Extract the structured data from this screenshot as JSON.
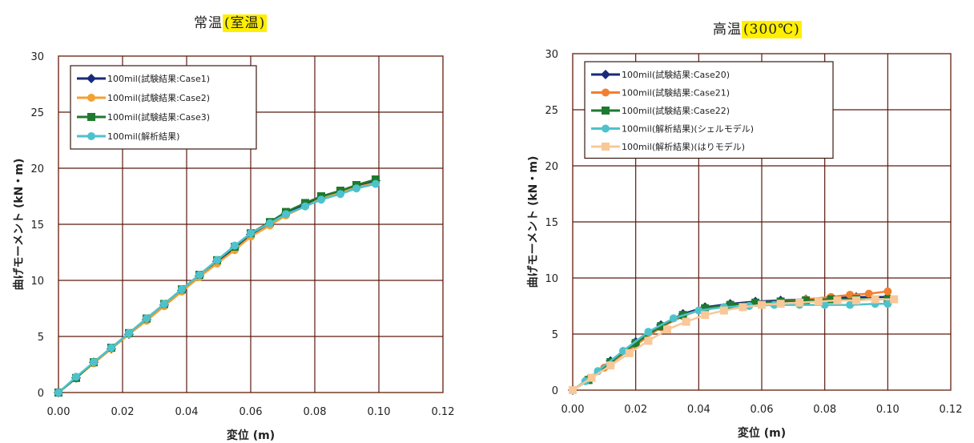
{
  "chart_data": [
    {
      "type": "line",
      "title": "常温",
      "title_highlight": "(室温)",
      "xlabel": "変位 (m)",
      "ylabel": "曲げモーメント (kN・m)",
      "xlim": [
        0,
        0.12
      ],
      "ylim": [
        0,
        30
      ],
      "xticks": [
        "0.00",
        "0.02",
        "0.04",
        "0.06",
        "0.08",
        "0.10",
        "0.12"
      ],
      "yticks": [
        "0",
        "5",
        "10",
        "15",
        "20",
        "25",
        "30"
      ],
      "grid": true,
      "legend_position": "top-left",
      "series": [
        {
          "name": "100mil(試験結果:Case1)",
          "color": "#1a2a7a",
          "marker": "diamond",
          "x": [
            0,
            0.0055,
            0.011,
            0.0165,
            0.022,
            0.0275,
            0.033,
            0.0385,
            0.044,
            0.0495,
            0.055,
            0.06,
            0.066,
            0.071,
            0.077,
            0.082,
            0.088,
            0.093,
            0.099
          ],
          "y": [
            0,
            1.3,
            2.7,
            3.9,
            5.2,
            6.5,
            7.8,
            9.1,
            10.4,
            11.7,
            12.9,
            14.1,
            15.1,
            16.0,
            16.8,
            17.4,
            17.9,
            18.4,
            18.9
          ]
        },
        {
          "name": "100mil(試験結果:Case2)",
          "color": "#f5a030",
          "marker": "circle",
          "x": [
            0,
            0.0055,
            0.011,
            0.0165,
            0.022,
            0.0275,
            0.033,
            0.0385,
            0.044,
            0.0495,
            0.055,
            0.06,
            0.066,
            0.071,
            0.077,
            0.082,
            0.088,
            0.093,
            0.099
          ],
          "y": [
            0,
            1.3,
            2.6,
            3.9,
            5.2,
            6.4,
            7.7,
            9.0,
            10.3,
            11.5,
            12.7,
            13.9,
            14.9,
            15.8,
            16.6,
            17.3,
            17.8,
            18.3,
            18.7
          ]
        },
        {
          "name": "100mil(試験結果:Case3)",
          "color": "#1e7a2e",
          "marker": "square",
          "x": [
            0,
            0.0055,
            0.011,
            0.0165,
            0.022,
            0.0275,
            0.033,
            0.0385,
            0.044,
            0.0495,
            0.055,
            0.06,
            0.066,
            0.071,
            0.077,
            0.082,
            0.088,
            0.093,
            0.099
          ],
          "y": [
            0,
            1.3,
            2.7,
            4.0,
            5.3,
            6.6,
            7.9,
            9.2,
            10.5,
            11.8,
            13.0,
            14.2,
            15.2,
            16.1,
            16.9,
            17.5,
            18.0,
            18.5,
            19.0
          ]
        },
        {
          "name": "100mil(解析結果)",
          "color": "#4ec2cc",
          "marker": "circle",
          "x": [
            0,
            0.0055,
            0.011,
            0.0165,
            0.022,
            0.0275,
            0.033,
            0.0385,
            0.044,
            0.0495,
            0.055,
            0.06,
            0.066,
            0.071,
            0.077,
            0.082,
            0.088,
            0.093,
            0.099
          ],
          "y": [
            0,
            1.4,
            2.7,
            4.0,
            5.3,
            6.6,
            7.9,
            9.2,
            10.5,
            11.8,
            13.1,
            14.2,
            15.1,
            15.9,
            16.6,
            17.2,
            17.7,
            18.2,
            18.6
          ]
        }
      ]
    },
    {
      "type": "line",
      "title": "高温",
      "title_highlight": "(300℃)",
      "xlabel": "変位 (m)",
      "ylabel": "曲げモーメント (kN・m)",
      "xlim": [
        0,
        0.12
      ],
      "ylim": [
        0,
        30
      ],
      "xticks": [
        "0.00",
        "0.02",
        "0.04",
        "0.06",
        "0.08",
        "0.10",
        "0.12"
      ],
      "yticks": [
        "0",
        "5",
        "10",
        "15",
        "20",
        "25",
        "30"
      ],
      "grid": true,
      "legend_position": "top-left",
      "series": [
        {
          "name": "100mil(試験結果:Case20)",
          "color": "#1a2a7a",
          "marker": "diamond",
          "x": [
            0,
            0.005,
            0.012,
            0.02,
            0.028,
            0.035,
            0.042,
            0.05,
            0.058,
            0.066,
            0.074,
            0.082,
            0.09,
            0.1
          ],
          "y": [
            0,
            1.0,
            2.6,
            4.3,
            5.8,
            6.8,
            7.4,
            7.7,
            7.9,
            8.0,
            8.1,
            8.2,
            8.3,
            8.3
          ]
        },
        {
          "name": "100mil(試験結果:Case21)",
          "color": "#f08030",
          "marker": "circle",
          "x": [
            0,
            0.005,
            0.01,
            0.02,
            0.028,
            0.035,
            0.042,
            0.05,
            0.058,
            0.066,
            0.074,
            0.082,
            0.088,
            0.094,
            0.1
          ],
          "y": [
            0,
            0.9,
            2.0,
            4.0,
            5.6,
            6.6,
            7.3,
            7.6,
            7.8,
            7.9,
            8.1,
            8.3,
            8.5,
            8.6,
            8.8
          ]
        },
        {
          "name": "100mil(試験結果:Case22)",
          "color": "#1e7a2e",
          "marker": "square",
          "x": [
            0,
            0.005,
            0.012,
            0.02,
            0.028,
            0.035,
            0.042,
            0.05,
            0.058,
            0.066,
            0.074,
            0.082,
            0.09,
            0.1
          ],
          "y": [
            0,
            0.9,
            2.5,
            4.2,
            5.7,
            6.7,
            7.3,
            7.6,
            7.8,
            7.9,
            8.0,
            8.1,
            8.1,
            8.1
          ]
        },
        {
          "name": "100mil(解析結果)(シェルモデル)",
          "color": "#4ec2cc",
          "marker": "circle",
          "x": [
            0,
            0.004,
            0.008,
            0.016,
            0.024,
            0.032,
            0.04,
            0.048,
            0.056,
            0.064,
            0.072,
            0.08,
            0.088,
            0.096,
            0.1
          ],
          "y": [
            0,
            0.8,
            1.7,
            3.5,
            5.2,
            6.4,
            7.1,
            7.4,
            7.5,
            7.6,
            7.6,
            7.6,
            7.6,
            7.7,
            7.7
          ]
        },
        {
          "name": "100mil(解析結果)(はりモデル)",
          "color": "#f8c898",
          "marker": "square",
          "x": [
            0,
            0.006,
            0.012,
            0.018,
            0.024,
            0.03,
            0.036,
            0.042,
            0.048,
            0.054,
            0.06,
            0.066,
            0.072,
            0.078,
            0.084,
            0.09,
            0.096,
            0.102
          ],
          "y": [
            0,
            1.1,
            2.2,
            3.3,
            4.4,
            5.4,
            6.1,
            6.7,
            7.1,
            7.4,
            7.6,
            7.7,
            7.8,
            7.9,
            8.0,
            8.0,
            8.1,
            8.1
          ]
        }
      ]
    }
  ]
}
